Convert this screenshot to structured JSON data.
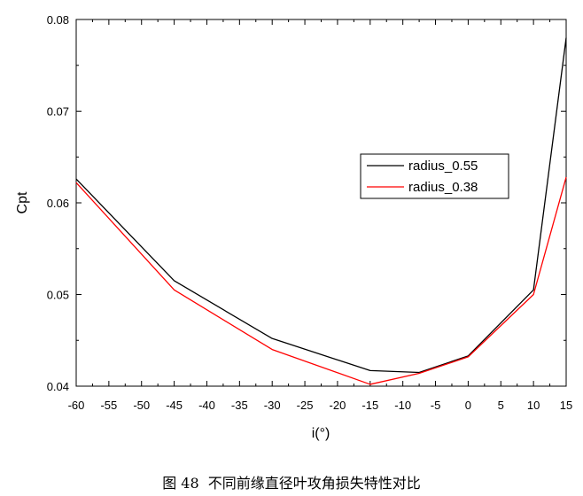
{
  "chart_data": {
    "type": "line",
    "xlabel": "i(°)",
    "ylabel": "Cpt",
    "xlim": [
      -60,
      15
    ],
    "ylim": [
      0.04,
      0.08
    ],
    "x_ticks": [
      -60,
      -55,
      -50,
      -45,
      -40,
      -35,
      -30,
      -25,
      -20,
      -15,
      -10,
      -5,
      0,
      5,
      10,
      15
    ],
    "y_ticks": [
      "0.04",
      "0.05",
      "0.06",
      "0.07",
      "0.08"
    ],
    "grid": false,
    "legend_position": "right",
    "series": [
      {
        "name": "radius_0.55",
        "color": "#000000",
        "x": [
          -60,
          -45,
          -30,
          -15,
          -7.5,
          0,
          10,
          15
        ],
        "y": [
          0.0626,
          0.0515,
          0.0452,
          0.0417,
          0.0415,
          0.0433,
          0.0505,
          0.078
        ]
      },
      {
        "name": "radius_0.38",
        "color": "#ff0000",
        "x": [
          -60,
          -45,
          -30,
          -15,
          -7.5,
          0,
          10,
          15
        ],
        "y": [
          0.0622,
          0.0505,
          0.044,
          0.0402,
          0.0414,
          0.0432,
          0.05,
          0.0628
        ]
      }
    ]
  },
  "caption": "图 48  不同前缘直径叶攻角损失特性对比"
}
